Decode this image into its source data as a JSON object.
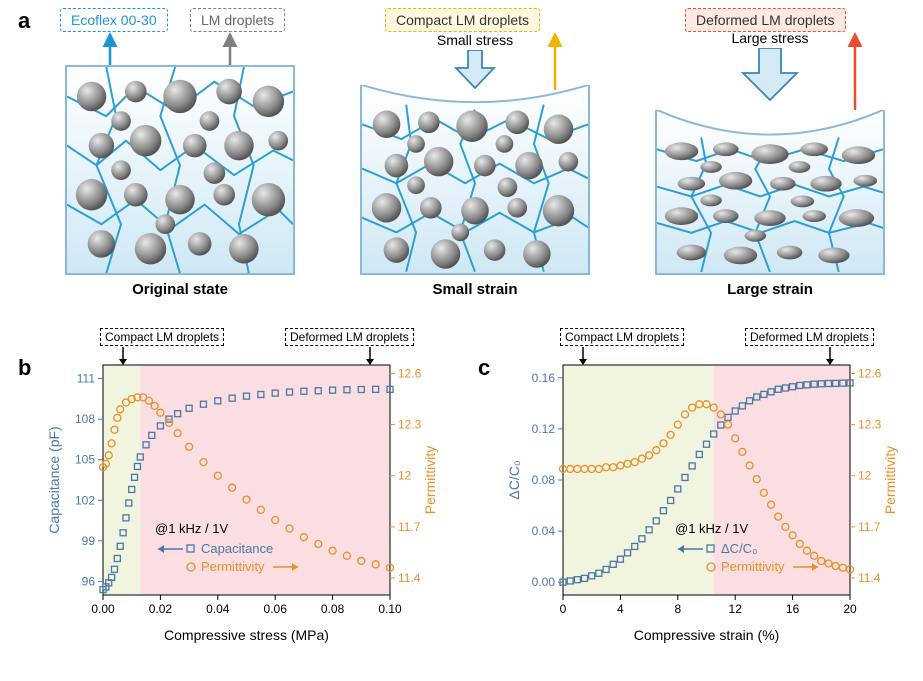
{
  "panelA": {
    "panel_letter": "a",
    "tags": {
      "ecoflex": "Ecoflex 00-30",
      "lm": "LM droplets",
      "compact": "Compact LM droplets",
      "deformed": "Deformed LM droplets"
    },
    "states": {
      "original": "Original state",
      "small": "Small strain",
      "large": "Large strain"
    },
    "stress": {
      "small": "Small stress",
      "large": "Large stress"
    },
    "colors": {
      "ecoflex_tag": "#1c95d6",
      "lm_tag": "#7f7f7f",
      "compact_tag": "#f5b100",
      "deformed_tag": "#e94f2e",
      "arrow_fill": "#d6eaf6",
      "arrow_stroke": "#3a86b8"
    }
  },
  "panelB": {
    "panel_letter": "b",
    "xlabel": "Compressive stress (MPa)",
    "ylabel_left": "Capacitance (pF)",
    "ylabel_right": "Permittivity",
    "xlim": [
      0,
      0.1
    ],
    "xtick": [
      0.0,
      0.02,
      0.04,
      0.06,
      0.08,
      0.1
    ],
    "yL_lim": [
      95,
      112
    ],
    "yL_tick": [
      96,
      99,
      102,
      105,
      108,
      111
    ],
    "yR_lim": [
      11.3,
      12.65
    ],
    "yR_tick": [
      11.4,
      11.7,
      12.0,
      12.3,
      12.6
    ],
    "region_split_x": 0.013,
    "region_colors": {
      "left": "#f1f4de",
      "right": "#fadee2"
    },
    "cap_color": "#4a78a6",
    "perm_color": "#e99027",
    "condition": "@1 kHz / 1V",
    "legend": {
      "cap": "Capacitance",
      "perm": "Permittivity"
    },
    "range_tags": {
      "left": "Compact LM droplets",
      "right": "Deformed LM droplets"
    },
    "cap_series": [
      [
        0.0,
        95.4
      ],
      [
        0.001,
        95.6
      ],
      [
        0.002,
        95.9
      ],
      [
        0.003,
        96.3
      ],
      [
        0.004,
        96.9
      ],
      [
        0.005,
        97.7
      ],
      [
        0.006,
        98.6
      ],
      [
        0.007,
        99.6
      ],
      [
        0.008,
        100.7
      ],
      [
        0.009,
        101.8
      ],
      [
        0.01,
        102.8
      ],
      [
        0.011,
        103.7
      ],
      [
        0.012,
        104.5
      ],
      [
        0.013,
        105.2
      ],
      [
        0.015,
        106.1
      ],
      [
        0.017,
        106.8
      ],
      [
        0.02,
        107.5
      ],
      [
        0.023,
        108.0
      ],
      [
        0.026,
        108.4
      ],
      [
        0.03,
        108.8
      ],
      [
        0.035,
        109.1
      ],
      [
        0.04,
        109.35
      ],
      [
        0.045,
        109.55
      ],
      [
        0.05,
        109.7
      ],
      [
        0.055,
        109.82
      ],
      [
        0.06,
        109.92
      ],
      [
        0.065,
        110.0
      ],
      [
        0.07,
        110.06
      ],
      [
        0.075,
        110.1
      ],
      [
        0.08,
        110.14
      ],
      [
        0.085,
        110.17
      ],
      [
        0.09,
        110.19
      ],
      [
        0.095,
        110.2
      ],
      [
        0.1,
        110.2
      ]
    ],
    "perm_series": [
      [
        0.0,
        12.05
      ],
      [
        0.001,
        12.07
      ],
      [
        0.002,
        12.12
      ],
      [
        0.003,
        12.19
      ],
      [
        0.004,
        12.27
      ],
      [
        0.005,
        12.34
      ],
      [
        0.006,
        12.39
      ],
      [
        0.008,
        12.43
      ],
      [
        0.01,
        12.45
      ],
      [
        0.012,
        12.46
      ],
      [
        0.014,
        12.46
      ],
      [
        0.016,
        12.44
      ],
      [
        0.018,
        12.41
      ],
      [
        0.02,
        12.37
      ],
      [
        0.023,
        12.31
      ],
      [
        0.026,
        12.25
      ],
      [
        0.03,
        12.17
      ],
      [
        0.035,
        12.08
      ],
      [
        0.04,
        12.0
      ],
      [
        0.045,
        11.93
      ],
      [
        0.05,
        11.86
      ],
      [
        0.055,
        11.8
      ],
      [
        0.06,
        11.74
      ],
      [
        0.065,
        11.69
      ],
      [
        0.07,
        11.64
      ],
      [
        0.075,
        11.6
      ],
      [
        0.08,
        11.56
      ],
      [
        0.085,
        11.53
      ],
      [
        0.09,
        11.5
      ],
      [
        0.095,
        11.48
      ],
      [
        0.1,
        11.46
      ]
    ]
  },
  "panelC": {
    "panel_letter": "c",
    "xlabel": "Compressive strain (%)",
    "ylabel_left": "ΔC/C₀",
    "ylabel_right": "Permittivity",
    "xlim": [
      0,
      20
    ],
    "xtick": [
      0,
      4,
      8,
      12,
      16,
      20
    ],
    "yL_lim": [
      -0.01,
      0.17
    ],
    "yL_tick": [
      0.0,
      0.04,
      0.08,
      0.12,
      0.16
    ],
    "yR_lim": [
      11.3,
      12.65
    ],
    "yR_tick": [
      11.4,
      11.7,
      12.0,
      12.3,
      12.6
    ],
    "region_split_x": 10.5,
    "region_colors": {
      "left": "#f1f4de",
      "right": "#fadee2"
    },
    "cap_color": "#4a78a6",
    "perm_color": "#e99027",
    "condition": "@1 kHz / 1V",
    "legend": {
      "cap": "ΔC/C₀",
      "perm": "Permittivity"
    },
    "range_tags": {
      "left": "Compact LM droplets",
      "right": "Deformed LM droplets"
    },
    "cap_series": [
      [
        0,
        0.0
      ],
      [
        0.5,
        0.001
      ],
      [
        1,
        0.002
      ],
      [
        1.5,
        0.003
      ],
      [
        2,
        0.005
      ],
      [
        2.5,
        0.007
      ],
      [
        3,
        0.01
      ],
      [
        3.5,
        0.014
      ],
      [
        4,
        0.018
      ],
      [
        4.5,
        0.023
      ],
      [
        5,
        0.028
      ],
      [
        5.5,
        0.034
      ],
      [
        6,
        0.041
      ],
      [
        6.5,
        0.048
      ],
      [
        7,
        0.056
      ],
      [
        7.5,
        0.064
      ],
      [
        8,
        0.073
      ],
      [
        8.5,
        0.082
      ],
      [
        9,
        0.091
      ],
      [
        9.5,
        0.1
      ],
      [
        10,
        0.108
      ],
      [
        10.5,
        0.116
      ],
      [
        11,
        0.123
      ],
      [
        11.5,
        0.129
      ],
      [
        12,
        0.134
      ],
      [
        12.5,
        0.138
      ],
      [
        13,
        0.142
      ],
      [
        13.5,
        0.145
      ],
      [
        14,
        0.147
      ],
      [
        14.5,
        0.149
      ],
      [
        15,
        0.151
      ],
      [
        15.5,
        0.152
      ],
      [
        16,
        0.153
      ],
      [
        16.5,
        0.154
      ],
      [
        17,
        0.1545
      ],
      [
        17.5,
        0.155
      ],
      [
        18,
        0.1553
      ],
      [
        18.5,
        0.1555
      ],
      [
        19,
        0.1556
      ],
      [
        19.5,
        0.1558
      ],
      [
        20,
        0.156
      ]
    ],
    "perm_series": [
      [
        0,
        12.04
      ],
      [
        0.5,
        12.04
      ],
      [
        1,
        12.04
      ],
      [
        1.5,
        12.04
      ],
      [
        2,
        12.04
      ],
      [
        2.5,
        12.04
      ],
      [
        3,
        12.05
      ],
      [
        3.5,
        12.05
      ],
      [
        4,
        12.06
      ],
      [
        4.5,
        12.07
      ],
      [
        5,
        12.08
      ],
      [
        5.5,
        12.1
      ],
      [
        6,
        12.12
      ],
      [
        6.5,
        12.15
      ],
      [
        7,
        12.19
      ],
      [
        7.5,
        12.24
      ],
      [
        8,
        12.3
      ],
      [
        8.5,
        12.36
      ],
      [
        9,
        12.4
      ],
      [
        9.5,
        12.42
      ],
      [
        10,
        12.42
      ],
      [
        10.5,
        12.4
      ],
      [
        11,
        12.36
      ],
      [
        11.5,
        12.3
      ],
      [
        12,
        12.22
      ],
      [
        12.5,
        12.14
      ],
      [
        13,
        12.06
      ],
      [
        13.5,
        11.98
      ],
      [
        14,
        11.9
      ],
      [
        14.5,
        11.83
      ],
      [
        15,
        11.76
      ],
      [
        15.5,
        11.7
      ],
      [
        16,
        11.65
      ],
      [
        16.5,
        11.6
      ],
      [
        17,
        11.56
      ],
      [
        17.5,
        11.53
      ],
      [
        18,
        11.5
      ],
      [
        18.5,
        11.485
      ],
      [
        19,
        11.47
      ],
      [
        19.5,
        11.46
      ],
      [
        20,
        11.45
      ]
    ]
  }
}
